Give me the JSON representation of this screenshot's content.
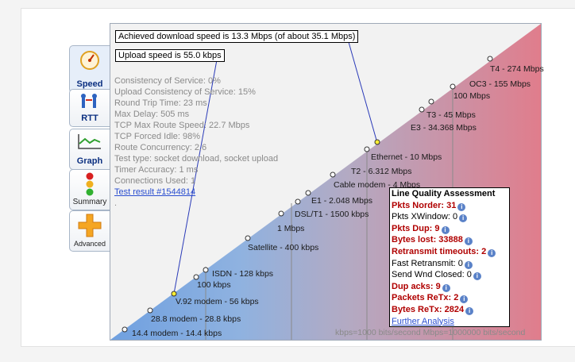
{
  "tabs": [
    {
      "label": "Speed",
      "icon": "speedometer-icon"
    },
    {
      "label": "RTT",
      "icon": "rtt-icon"
    },
    {
      "label": "Graph",
      "icon": "graph-icon"
    },
    {
      "label": "Summary",
      "icon": "traffic-light-icon"
    },
    {
      "label": "Advanced",
      "icon": "plus-icon"
    }
  ],
  "callouts": {
    "download": "Achieved download speed is 13.3 Mbps (of about 35.1 Mbps)",
    "upload": "Upload speed is 55.0 kbps"
  },
  "stats": [
    "Consistency of Service: 0%",
    "Upload Consistency of Service: 15%",
    "Round Trip Time: 23 ms",
    "Max Delay: 505 ms",
    "TCP Max Route Speed: 22.7 Mbps",
    "TCP Forced Idle: 98%",
    "Route Concurrency: 2.6",
    "Test type: socket download, socket upload",
    "Timer Accuracy: 1 ms",
    "Connections Used: 1"
  ],
  "test_result": "Test result #1544814",
  "dot_text": ".",
  "speed_labels": [
    "14.4 modem - 14.4 kbps",
    "28.8 modem - 28.8 kbps",
    "V.92 modem - 56 kbps",
    "100 kbps",
    "ISDN - 128 kbps",
    "Satellite - 400 kbps",
    "1 Mbps",
    "DSL/T1 - 1500 kbps",
    "E1 - 2.048 Mbps",
    "Cable modem - 4 Mbps",
    "T2 - 6.312 Mbps",
    "Ethernet - 10 Mbps",
    "E3 - 34.368 Mbps",
    "T3 - 45 Mbps",
    "100 Mbps",
    "OC3 - 155 Mbps",
    "T4 - 274 Mbps"
  ],
  "footer_note": "kbps=1000 bits/second  Mbps=1000000 bits/second",
  "lqa": {
    "title": "Line Quality Assessment",
    "rows": [
      {
        "label": "Pkts Norder: 31",
        "highlight": true
      },
      {
        "label": "Pkts XWindow: 0",
        "highlight": false
      },
      {
        "label": "Pkts Dup: 9",
        "highlight": true
      },
      {
        "label": "Bytes lost: 33888",
        "highlight": true
      },
      {
        "label": "Retransmit timeouts: 2",
        "highlight": true
      },
      {
        "label": "Fast Retransmit: 0",
        "highlight": false
      },
      {
        "label": "Send Wnd Closed: 0",
        "highlight": false
      },
      {
        "label": "Dup acks: 9",
        "highlight": true
      },
      {
        "label": "Packets ReTx: 2",
        "highlight": true
      },
      {
        "label": "Bytes ReTx: 2824",
        "highlight": true
      }
    ],
    "link": "Further Analysis"
  },
  "colors": {
    "tab_text": "#0b2f80",
    "highlight": "#b00000",
    "link": "#2a4ed0",
    "blue_zone": "#6fa0e0",
    "red_zone": "#e07d8c",
    "marker": "#ffee33"
  }
}
